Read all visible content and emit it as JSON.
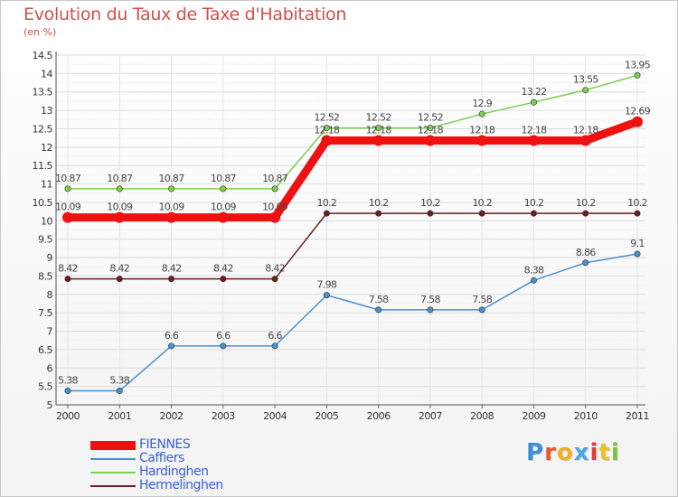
{
  "chart_data": {
    "type": "line",
    "title": "Evolution du Taux de Taxe d'Habitation",
    "ylabel": "(en %)",
    "xlabel": "",
    "categories": [
      "2000",
      "2001",
      "2002",
      "2003",
      "2004",
      "2005",
      "2006",
      "2007",
      "2008",
      "2009",
      "2010",
      "2011"
    ],
    "ylim": [
      5,
      14.5
    ],
    "yticks": [
      "5",
      "5.5",
      "6",
      "6.5",
      "7",
      "7.5",
      "8",
      "8.5",
      "9",
      "9.5",
      "10",
      "10.5",
      "11",
      "11.5",
      "12",
      "12.5",
      "13",
      "13.5",
      "14",
      "14.5"
    ],
    "grid": true,
    "legend_position": "bottom-left",
    "series": [
      {
        "name": "Hermelinghen",
        "color": "#6b1e1e",
        "values": [
          8.42,
          8.42,
          8.42,
          8.42,
          8.42,
          10.2,
          10.2,
          10.2,
          10.2,
          10.2,
          10.2,
          10.2
        ],
        "labels": [
          "8.42",
          "8.42",
          "8.42",
          "8.42",
          "8.42",
          "10.2",
          "10.2",
          "10.2",
          "10.2",
          "10.2",
          "10.2",
          "10.2"
        ]
      },
      {
        "name": "Caffiers",
        "color": "#4a90d0",
        "values": [
          5.38,
          5.38,
          6.6,
          6.6,
          6.6,
          7.98,
          7.58,
          7.58,
          7.58,
          8.38,
          8.86,
          9.1
        ],
        "labels": [
          "5.38",
          "5.38",
          "6.6",
          "6.6",
          "6.6",
          "7.98",
          "7.58",
          "7.58",
          "7.58",
          "8.38",
          "8.86",
          "9.1"
        ]
      },
      {
        "name": "Hardinghen",
        "color": "#7cd050",
        "values": [
          10.87,
          10.87,
          10.87,
          10.87,
          10.87,
          12.52,
          12.52,
          12.52,
          12.9,
          13.22,
          13.55,
          13.95
        ],
        "labels": [
          "10.87",
          "10.87",
          "10.87",
          "10.87",
          "10.87",
          "12.52",
          "12.52",
          "12.52",
          "12.9",
          "13.22",
          "13.55",
          "13.95"
        ]
      },
      {
        "name": "FIENNES",
        "color": "#ee1111",
        "values": [
          10.09,
          10.09,
          10.09,
          10.09,
          10.09,
          12.18,
          12.18,
          12.18,
          12.18,
          12.18,
          12.18,
          12.69
        ],
        "labels": [
          "10.09",
          "10.09",
          "10.09",
          "10.09",
          "10.09",
          "12.18",
          "12.18",
          "12.18",
          "12.18",
          "12.18",
          "12.18",
          "12.69"
        ]
      }
    ]
  },
  "legend": {
    "items": [
      {
        "label": "FIENNES",
        "color": "#ee1111"
      },
      {
        "label": "Caffiers",
        "color": "#4a90d0"
      },
      {
        "label": "Hardinghen",
        "color": "#7cd050"
      },
      {
        "label": "Hermelinghen",
        "color": "#6b1e1e"
      }
    ]
  },
  "logo": {
    "text": "Proxiti",
    "colors": [
      "#3a8fd8",
      "#e85a2a",
      "#f0b020",
      "#4aa8e0",
      "#e83a3a",
      "#f0c020",
      "#7cc040"
    ]
  }
}
